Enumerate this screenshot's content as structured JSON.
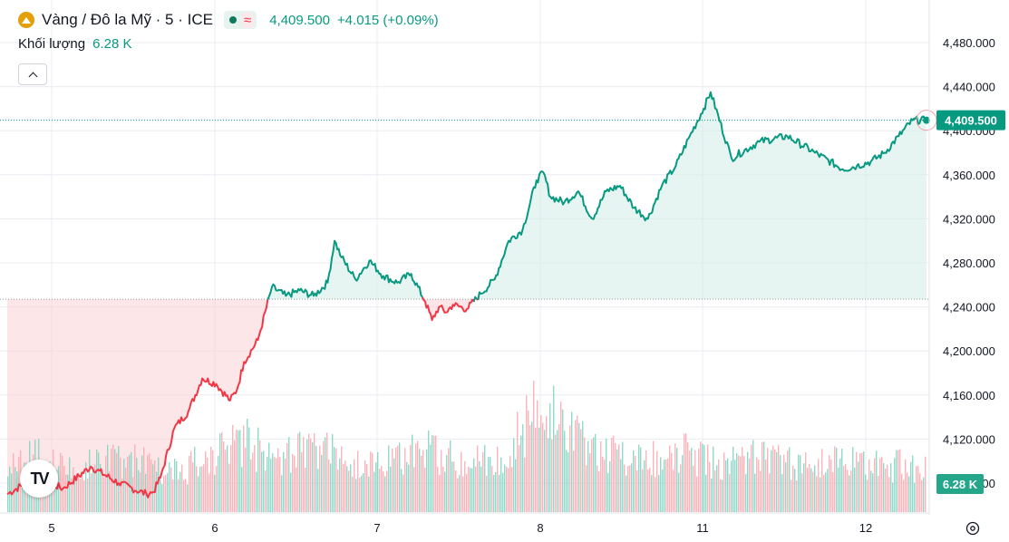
{
  "header": {
    "symbol": "Vàng / Đô la Mỹ · 5 · ICE",
    "price": "4,409.500",
    "change": "+4.015 (+0.09%)",
    "volume_label": "Khối lượng",
    "volume_value": "6.28 K"
  },
  "axis": {
    "current_price_label": "4,409.500",
    "volume_badge": "6.28 K"
  },
  "colors": {
    "up": "#089981",
    "down": "#f23645",
    "grid": "#e9ecf1",
    "up_fill": "#d6efe8",
    "down_fill": "#fbd5d9"
  },
  "chart_data": {
    "type": "area",
    "y_ticks": [
      "4,080.000",
      "4,120.000",
      "4,160.000",
      "4,200.000",
      "4,240.000",
      "4,280.000",
      "4,320.000",
      "4,360.000",
      "4,400.000",
      "4,440.000",
      "4,480.000"
    ],
    "x_ticks": [
      "5",
      "6",
      "7",
      "8",
      "11",
      "12"
    ],
    "ylim": [
      4050,
      4485
    ],
    "baseline": 4247,
    "current_price": 4409.5,
    "line_color_rule": "green above baseline, red below",
    "x_positions": [
      0.0,
      0.2,
      0.4,
      0.6,
      0.8,
      1.0,
      1.05,
      1.1,
      1.2,
      1.3,
      1.4,
      1.5,
      1.6,
      1.65,
      1.7,
      1.8,
      1.9,
      2.0,
      2.1,
      2.2,
      2.3,
      2.35,
      2.4,
      2.5,
      2.6,
      2.7,
      2.8,
      2.9,
      3.0,
      3.05,
      3.1,
      3.15,
      3.2,
      3.3,
      3.4,
      3.5,
      3.6,
      3.7,
      3.8,
      3.85,
      3.9,
      4.0,
      4.1,
      4.2,
      4.3,
      4.4,
      4.5,
      4.6,
      4.7,
      4.8,
      4.9,
      5.0,
      5.05,
      5.2,
      5.4,
      5.6,
      5.8,
      6.0,
      6.1,
      6.2,
      6.3,
      6.4,
      6.5,
      6.6
    ],
    "values": [
      4070,
      4085,
      4075,
      4095,
      4080,
      4070,
      4072,
      4085,
      4130,
      4145,
      4175,
      4170,
      4155,
      4165,
      4190,
      4210,
      4258,
      4250,
      4255,
      4250,
      4262,
      4300,
      4285,
      4265,
      4282,
      4268,
      4262,
      4270,
      4245,
      4228,
      4240,
      4235,
      4242,
      4238,
      4252,
      4265,
      4300,
      4310,
      4355,
      4362,
      4340,
      4335,
      4345,
      4320,
      4345,
      4350,
      4330,
      4320,
      4350,
      4368,
      4395,
      4420,
      4435,
      4375,
      4390,
      4395,
      4380,
      4365,
      4368,
      4372,
      4380,
      4395,
      4409.5,
      4409.5
    ],
    "volume": {
      "unit": "K",
      "last": 6.28,
      "levels": [
        6.0,
        7.5,
        5.5,
        6.8,
        7.2,
        6.0,
        5.8,
        8.0,
        9.5,
        7.0,
        8.5,
        7.8,
        6.5,
        7.0,
        8.5,
        7.2,
        6.8,
        9.0,
        14.5,
        10.0,
        8.5,
        7.0,
        7.5,
        8.0,
        6.5,
        7.2,
        6.8,
        6.5,
        7.0,
        6.0,
        6.3,
        6.28
      ]
    }
  }
}
